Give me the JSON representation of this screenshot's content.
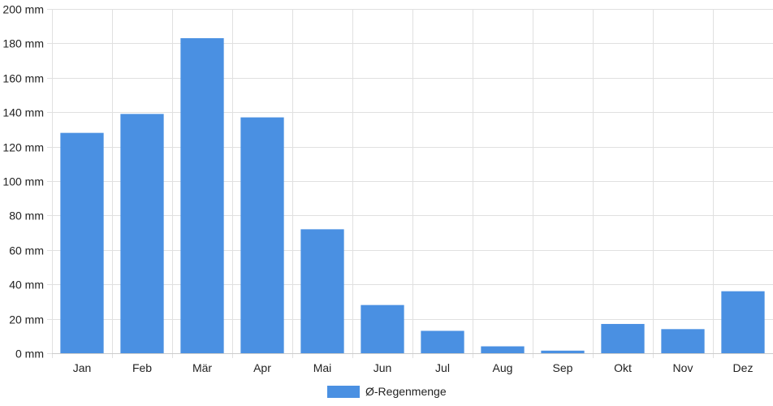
{
  "chart_data": {
    "type": "bar",
    "categories": [
      "Jan",
      "Feb",
      "Mär",
      "Apr",
      "Mai",
      "Jun",
      "Jul",
      "Aug",
      "Sep",
      "Okt",
      "Nov",
      "Dez"
    ],
    "series": [
      {
        "name": "Ø-Regenmenge",
        "values": [
          128,
          139,
          183,
          137,
          72,
          28,
          13,
          4,
          1.5,
          17,
          14,
          36
        ],
        "color": "#4a90e2"
      }
    ],
    "ylim": [
      0,
      200
    ],
    "yticks": [
      0,
      20,
      40,
      60,
      80,
      100,
      120,
      140,
      160,
      180,
      200
    ],
    "ytick_labels": [
      "0 mm",
      "20 mm",
      "40 mm",
      "60 mm",
      "80 mm",
      "100 mm",
      "120 mm",
      "140 mm",
      "160 mm",
      "180 mm",
      "200 mm"
    ],
    "grid": true,
    "grid_color": "#e0e0e0",
    "legend_position": "bottom"
  }
}
